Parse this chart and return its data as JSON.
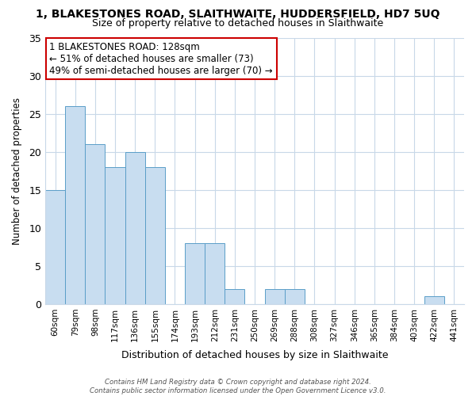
{
  "title_line1": "1, BLAKESTONES ROAD, SLAITHWAITE, HUDDERSFIELD, HD7 5UQ",
  "title_line2": "Size of property relative to detached houses in Slaithwaite",
  "xlabel": "Distribution of detached houses by size in Slaithwaite",
  "ylabel": "Number of detached properties",
  "bar_labels": [
    "60sqm",
    "79sqm",
    "98sqm",
    "117sqm",
    "136sqm",
    "155sqm",
    "174sqm",
    "193sqm",
    "212sqm",
    "231sqm",
    "250sqm",
    "269sqm",
    "288sqm",
    "308sqm",
    "327sqm",
    "346sqm",
    "365sqm",
    "384sqm",
    "403sqm",
    "422sqm",
    "441sqm"
  ],
  "bar_values": [
    15,
    26,
    21,
    18,
    20,
    18,
    0,
    8,
    8,
    2,
    0,
    2,
    2,
    0,
    0,
    0,
    0,
    0,
    0,
    1,
    0
  ],
  "bar_color": "#c8ddf0",
  "bar_edge_color": "#5a9ec8",
  "ylim": [
    0,
    35
  ],
  "yticks": [
    0,
    5,
    10,
    15,
    20,
    25,
    30,
    35
  ],
  "annotation_title": "1 BLAKESTONES ROAD: 128sqm",
  "annotation_line2": "← 51% of detached houses are smaller (73)",
  "annotation_line3": "49% of semi-detached houses are larger (70) →",
  "annotation_box_color": "#ffffff",
  "annotation_border_color": "#cc0000",
  "marker_line_color": "#cc0000",
  "footer_line1": "Contains HM Land Registry data © Crown copyright and database right 2024.",
  "footer_line2": "Contains public sector information licensed under the Open Government Licence v3.0.",
  "bg_color": "#ffffff",
  "grid_color": "#c8d8e8"
}
